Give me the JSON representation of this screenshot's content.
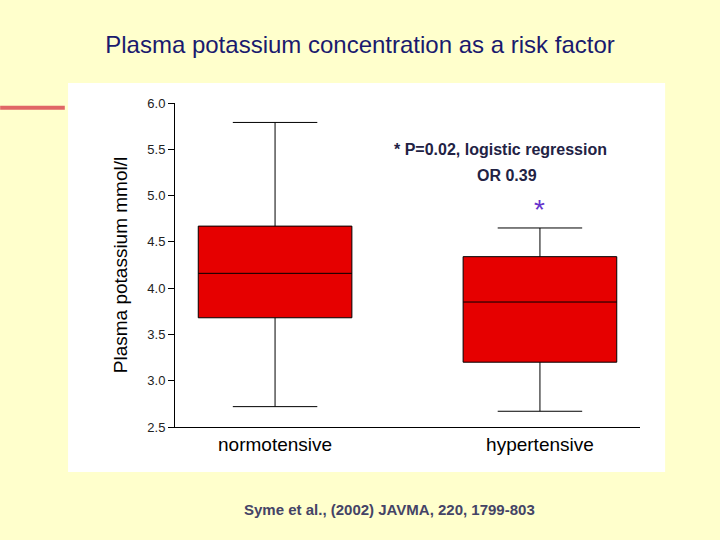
{
  "chart_data": {
    "type": "box",
    "title": "Plasma potassium concentration as a risk factor",
    "ylabel": "Plasma potassium mmol/l",
    "categories": [
      "normotensive",
      "hypertensive"
    ],
    "lower_whisker": [
      2.72,
      2.67
    ],
    "q1": [
      3.68,
      3.2
    ],
    "median": [
      4.16,
      3.85
    ],
    "q3": [
      4.67,
      4.34
    ],
    "upper_whisker": [
      5.79,
      4.65
    ],
    "color": "#e60000",
    "ylim": [
      2.5,
      6.0
    ],
    "yticks": [
      2.5,
      {
        "value": 3,
        "label": "3.0"
      },
      3.5,
      {
        "value": 4,
        "label": "4.0"
      },
      4.5,
      {
        "value": 5,
        "label": "5.0"
      },
      5.5,
      {
        "value": 6,
        "label": "6.0"
      }
    ],
    "grid": false,
    "annotations": [
      "* P=0.02, logistic regression",
      "OR 0.39",
      "*"
    ],
    "source": "Syme et al., (2002) JAVMA, 220, 1799-803"
  }
}
